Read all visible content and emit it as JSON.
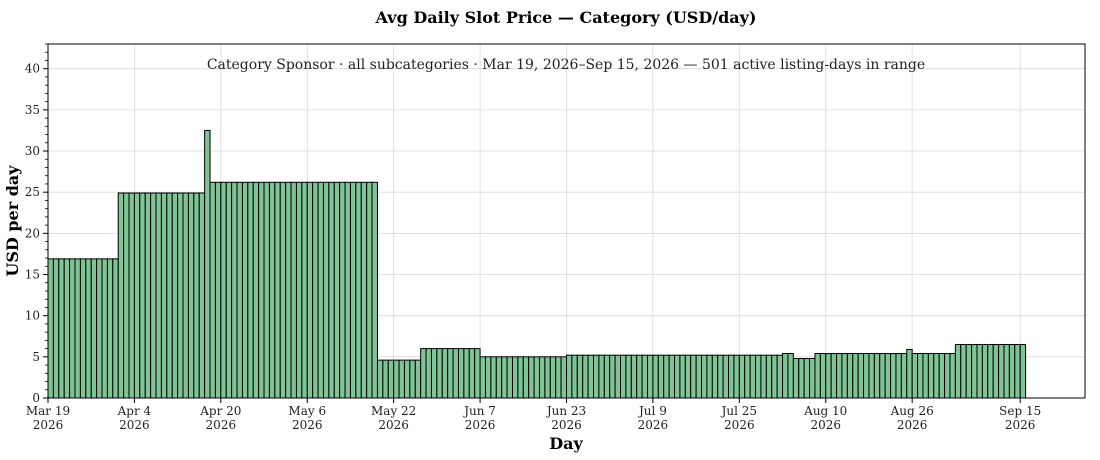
{
  "chart_data": {
    "type": "bar",
    "title": "Avg Daily Slot Price — Category (USD/day)",
    "subtitle": "Category Sponsor · all subcategories · Mar 19, 2026–Sep 15, 2026 — 501 active listing-days in range",
    "xlabel": "Day",
    "ylabel": "USD per day",
    "ylim": [
      0,
      43
    ],
    "yticks": [
      0,
      5,
      10,
      15,
      20,
      25,
      30,
      35,
      40
    ],
    "grid": true,
    "bar_color": "#7fc497",
    "x_range": [
      "2026-03-19",
      "2026-09-27"
    ],
    "xticks": [
      {
        "date": "2026-03-19",
        "line1": "Mar 19",
        "line2": "2026"
      },
      {
        "date": "2026-04-04",
        "line1": "Apr 4",
        "line2": "2026"
      },
      {
        "date": "2026-04-20",
        "line1": "Apr 20",
        "line2": "2026"
      },
      {
        "date": "2026-05-06",
        "line1": "May 6",
        "line2": "2026"
      },
      {
        "date": "2026-05-22",
        "line1": "May 22",
        "line2": "2026"
      },
      {
        "date": "2026-06-07",
        "line1": "Jun 7",
        "line2": "2026"
      },
      {
        "date": "2026-06-23",
        "line1": "Jun 23",
        "line2": "2026"
      },
      {
        "date": "2026-07-09",
        "line1": "Jul 9",
        "line2": "2026"
      },
      {
        "date": "2026-07-25",
        "line1": "Jul 25",
        "line2": "2026"
      },
      {
        "date": "2026-08-10",
        "line1": "Aug 10",
        "line2": "2026"
      },
      {
        "date": "2026-08-26",
        "line1": "Aug 26",
        "line2": "2026"
      },
      {
        "date": "2026-09-15",
        "line1": "Sep 15",
        "line2": "2026"
      }
    ],
    "segments": [
      {
        "start": "2026-03-19",
        "end": "2026-03-31",
        "value": 16.9
      },
      {
        "start": "2026-04-01",
        "end": "2026-04-16",
        "value": 24.9
      },
      {
        "start": "2026-04-17",
        "end": "2026-04-17",
        "value": 32.5
      },
      {
        "start": "2026-04-18",
        "end": "2026-05-18",
        "value": 26.2
      },
      {
        "start": "2026-05-19",
        "end": "2026-05-26",
        "value": 4.6
      },
      {
        "start": "2026-05-27",
        "end": "2026-06-06",
        "value": 6.0
      },
      {
        "start": "2026-06-07",
        "end": "2026-06-22",
        "value": 5.0
      },
      {
        "start": "2026-06-23",
        "end": "2026-08-01",
        "value": 5.2
      },
      {
        "start": "2026-08-02",
        "end": "2026-08-03",
        "value": 5.4
      },
      {
        "start": "2026-08-04",
        "end": "2026-08-07",
        "value": 4.8
      },
      {
        "start": "2026-08-08",
        "end": "2026-08-24",
        "value": 5.4
      },
      {
        "start": "2026-08-25",
        "end": "2026-08-25",
        "value": 5.9
      },
      {
        "start": "2026-08-26",
        "end": "2026-09-02",
        "value": 5.4
      },
      {
        "start": "2026-09-03",
        "end": "2026-09-15",
        "value": 6.5
      }
    ]
  }
}
